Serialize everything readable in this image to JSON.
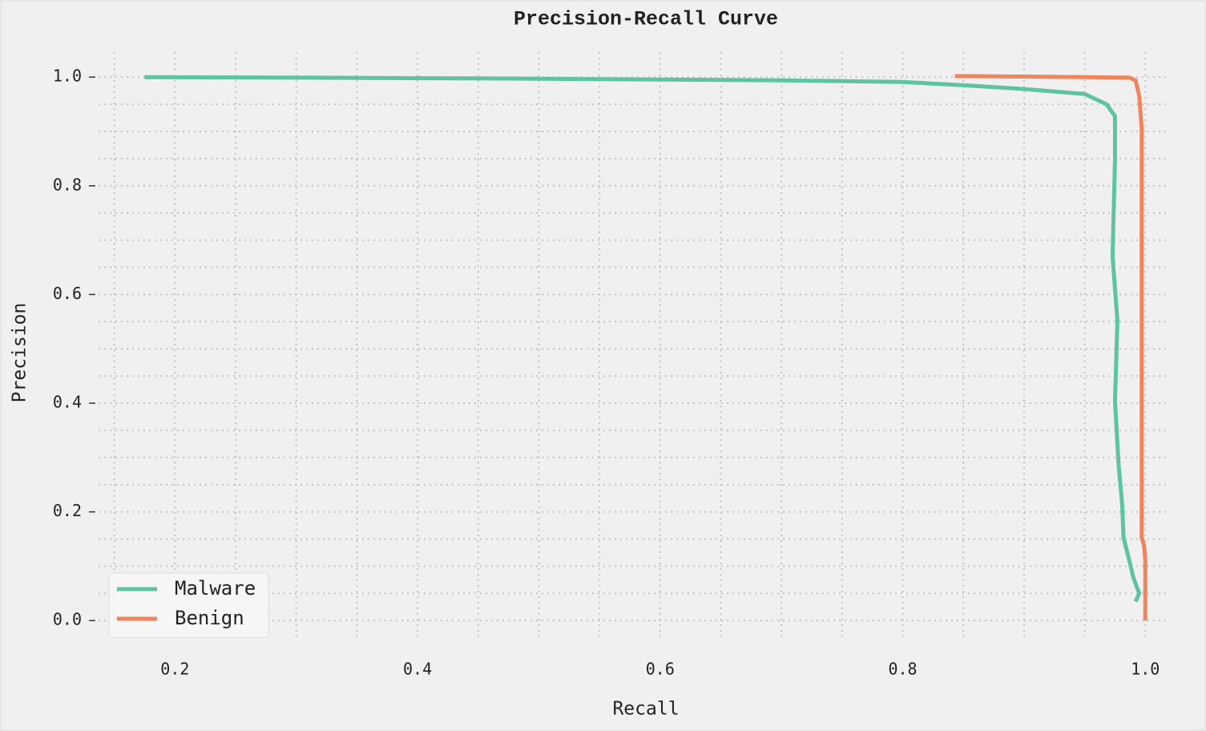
{
  "chart_data": {
    "type": "line",
    "title": "Precision-Recall Curve",
    "x_label": "Recall",
    "y_label": "Precision",
    "series": [
      {
        "name": "Malware",
        "color": "#5ec4a0",
        "x": [
          0.175,
          0.3,
          0.5,
          0.7,
          0.8,
          0.85,
          0.9,
          0.95,
          0.968,
          0.975,
          0.975,
          0.973,
          0.977,
          0.975,
          0.978,
          0.981,
          0.982,
          0.987,
          0.99,
          0.995,
          0.992
        ],
        "values": [
          1.0,
          0.999,
          0.997,
          0.994,
          0.991,
          0.985,
          0.978,
          0.969,
          0.95,
          0.928,
          0.847,
          0.67,
          0.552,
          0.404,
          0.286,
          0.212,
          0.153,
          0.109,
          0.08,
          0.05,
          0.035
        ]
      },
      {
        "name": "Benign",
        "color": "#f0845c",
        "x": [
          0.843,
          0.9,
          0.95,
          0.987,
          0.992,
          0.995,
          0.997,
          0.997,
          0.999,
          1.0,
          1.0
        ],
        "values": [
          1.002,
          1.001,
          1.0,
          0.999,
          0.994,
          0.965,
          0.906,
          0.153,
          0.138,
          0.109,
          0.0
        ]
      }
    ],
    "xlim": [
      0.137,
      1.017
    ],
    "ylim": [
      -0.038,
      1.046
    ],
    "xticks": [
      0.2,
      0.4,
      0.6,
      0.8,
      {
        "value": 1,
        "label": "1.0"
      }
    ],
    "yticks": [
      {
        "value": 0,
        "label": "0.0"
      },
      0.2,
      0.4,
      0.6,
      0.8,
      {
        "value": 1,
        "label": "1.0"
      }
    ],
    "xminorticks": [
      0.15,
      0.25,
      0.3,
      0.35,
      0.45,
      0.5,
      0.55,
      0.65,
      0.7,
      0.75,
      0.85,
      0.9,
      0.95
    ],
    "yminorticks": [
      0.05,
      0.1,
      0.15,
      0.25,
      0.3,
      0.35,
      0.45,
      0.5,
      0.55,
      0.65,
      0.7,
      0.75,
      0.85,
      0.9,
      0.95
    ],
    "grid": true,
    "legend": "lower left"
  }
}
